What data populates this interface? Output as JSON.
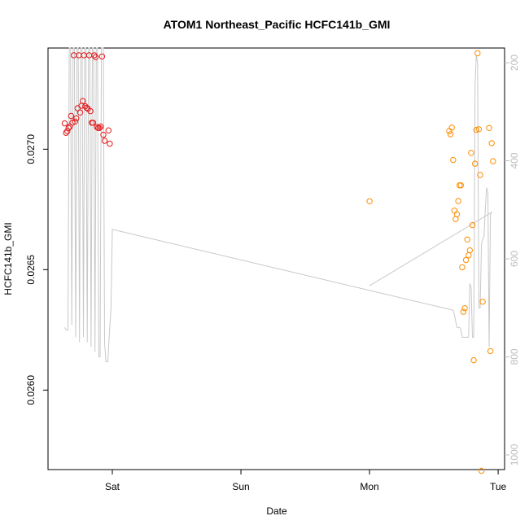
{
  "chart_data": {
    "type": "scatter",
    "title": "ATOM1 Northeast_Pacific HCFC141b_GMI",
    "xlabel": "Date",
    "ylabel": "HCFC141b_GMI",
    "x_axis": {
      "unit": "days",
      "range": [
        -0.5,
        3.05
      ],
      "ticks": [
        {
          "value": 0,
          "label": "Sat"
        },
        {
          "value": 1,
          "label": "Sun"
        },
        {
          "value": 2,
          "label": "Mon"
        },
        {
          "value": 3,
          "label": "Tue"
        }
      ]
    },
    "y_left": {
      "range": [
        0.02567,
        0.02742
      ],
      "ticks": [
        {
          "value": 0.026,
          "label": "0.0260"
        },
        {
          "value": 0.0265,
          "label": "0.0265"
        },
        {
          "value": 0.027,
          "label": "0.0270"
        }
      ]
    },
    "y_right": {
      "label": "",
      "reversed": true,
      "range": [
        1030,
        170
      ],
      "ticks": [
        {
          "value": 200,
          "label": "200"
        },
        {
          "value": 400,
          "label": "400"
        },
        {
          "value": 600,
          "label": "600"
        },
        {
          "value": 800,
          "label": "800"
        },
        {
          "value": 1000,
          "label": "1000"
        }
      ]
    },
    "colors": {
      "series_red": "#e41a1c",
      "series_orange": "#ff8c00",
      "pressure_line": "#c8c8c8"
    },
    "series": [
      {
        "color": "red",
        "points": [
          [
            -0.37,
            0.027107
          ],
          [
            -0.36,
            0.027068
          ],
          [
            -0.35,
            0.027075
          ],
          [
            -0.34,
            0.027088
          ],
          [
            -0.33,
            0.027094
          ],
          [
            -0.32,
            0.027138
          ],
          [
            -0.31,
            0.02711
          ],
          [
            -0.3,
            0.02739
          ],
          [
            -0.29,
            0.027115
          ],
          [
            -0.28,
            0.027128
          ],
          [
            -0.27,
            0.02717
          ],
          [
            -0.26,
            0.02739
          ],
          [
            -0.25,
            0.027152
          ],
          [
            -0.24,
            0.02718
          ],
          [
            -0.23,
            0.0272
          ],
          [
            -0.22,
            0.02739
          ],
          [
            -0.21,
            0.027178
          ],
          [
            -0.2,
            0.027172
          ],
          [
            -0.19,
            0.027168
          ],
          [
            -0.18,
            0.02739
          ],
          [
            -0.17,
            0.027158
          ],
          [
            -0.16,
            0.02711
          ],
          [
            -0.15,
            0.02711
          ],
          [
            -0.14,
            0.02739
          ],
          [
            -0.13,
            0.027382
          ],
          [
            -0.12,
            0.027092
          ],
          [
            -0.11,
            0.027088
          ],
          [
            -0.1,
            0.027088
          ],
          [
            -0.09,
            0.027094
          ],
          [
            -0.08,
            0.027385
          ],
          [
            -0.07,
            0.02706
          ],
          [
            -0.06,
            0.027035
          ],
          [
            -0.03,
            0.027078
          ],
          [
            -0.02,
            0.027023
          ]
        ]
      },
      {
        "color": "orange",
        "points": [
          [
            2.0,
            0.026784
          ],
          [
            2.62,
            0.027075
          ],
          [
            2.63,
            0.027062
          ],
          [
            2.64,
            0.02709
          ],
          [
            2.65,
            0.026955
          ],
          [
            2.66,
            0.026745
          ],
          [
            2.67,
            0.02671
          ],
          [
            2.68,
            0.02673
          ],
          [
            2.69,
            0.026785
          ],
          [
            2.7,
            0.02685
          ],
          [
            2.71,
            0.02685
          ],
          [
            2.72,
            0.02651
          ],
          [
            2.73,
            0.026325
          ],
          [
            2.74,
            0.02634
          ],
          [
            2.75,
            0.02654
          ],
          [
            2.76,
            0.026625
          ],
          [
            2.77,
            0.02656
          ],
          [
            2.78,
            0.02658
          ],
          [
            2.79,
            0.026985
          ],
          [
            2.8,
            0.026685
          ],
          [
            2.81,
            0.026124
          ],
          [
            2.82,
            0.02694
          ],
          [
            2.83,
            0.02708
          ],
          [
            2.84,
            0.027398
          ],
          [
            2.85,
            0.027083
          ],
          [
            2.86,
            0.026893
          ],
          [
            2.87,
            0.025665
          ],
          [
            2.88,
            0.026367
          ],
          [
            2.93,
            0.027088
          ],
          [
            2.94,
            0.026162
          ],
          [
            2.95,
            0.027025
          ],
          [
            2.96,
            0.02695
          ]
        ]
      }
    ],
    "pressure_line": {
      "axis": "right",
      "points": [
        [
          -0.37,
          740
        ],
        [
          -0.36,
          745
        ],
        [
          -0.345,
          745
        ],
        [
          -0.335,
          170
        ],
        [
          -0.325,
          170
        ],
        [
          -0.315,
          735
        ],
        [
          -0.305,
          170
        ],
        [
          -0.295,
          170
        ],
        [
          -0.285,
          760
        ],
        [
          -0.275,
          170
        ],
        [
          -0.265,
          170
        ],
        [
          -0.255,
          770
        ],
        [
          -0.245,
          170
        ],
        [
          -0.235,
          170
        ],
        [
          -0.225,
          760
        ],
        [
          -0.215,
          170
        ],
        [
          -0.205,
          170
        ],
        [
          -0.195,
          770
        ],
        [
          -0.185,
          170
        ],
        [
          -0.175,
          170
        ],
        [
          -0.165,
          780
        ],
        [
          -0.155,
          170
        ],
        [
          -0.145,
          170
        ],
        [
          -0.135,
          790
        ],
        [
          -0.125,
          170
        ],
        [
          -0.115,
          170
        ],
        [
          -0.105,
          800
        ],
        [
          -0.095,
          800
        ],
        [
          -0.085,
          170
        ],
        [
          -0.07,
          170
        ],
        [
          -0.06,
          770
        ],
        [
          -0.05,
          810
        ],
        [
          -0.035,
          810
        ],
        [
          -0.025,
          760
        ],
        [
          -0.01,
          700
        ],
        [
          0.0,
          540
        ],
        [
          2.65,
          705
        ],
        [
          2.66,
          715
        ],
        [
          2.68,
          740
        ],
        [
          2.7,
          740
        ],
        [
          2.71,
          745
        ],
        [
          2.72,
          760
        ],
        [
          2.75,
          760
        ],
        [
          2.77,
          760
        ],
        [
          2.78,
          650
        ],
        [
          2.79,
          660
        ],
        [
          2.8,
          760
        ],
        [
          2.81,
          760
        ],
        [
          2.82,
          250
        ],
        [
          2.83,
          185
        ],
        [
          2.84,
          200
        ],
        [
          2.85,
          700
        ],
        [
          2.86,
          700
        ],
        [
          2.87,
          570
        ],
        [
          2.88,
          560
        ],
        [
          2.89,
          555
        ],
        [
          2.9,
          500
        ],
        [
          2.91,
          455
        ],
        [
          2.92,
          465
        ],
        [
          2.93,
          780
        ],
        [
          2.94,
          510
        ],
        [
          2.95,
          505
        ],
        [
          2.0,
          655
        ]
      ]
    }
  }
}
